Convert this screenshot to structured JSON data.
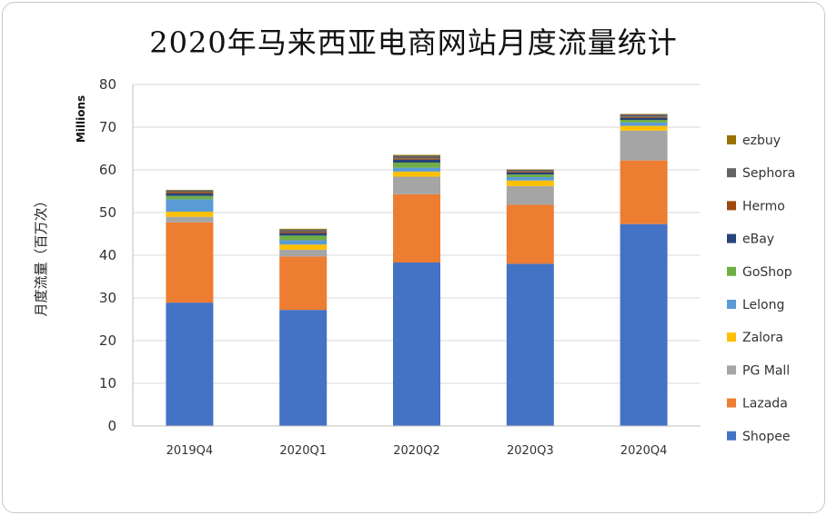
{
  "chart_data": {
    "type": "bar",
    "stacked": true,
    "title": "2020年马来西亚电商网站月度流量统计",
    "ylabel": "月度流量（百万次）",
    "yunit": "Millions",
    "ylim": [
      0,
      80
    ],
    "yticks": [
      0,
      10,
      20,
      30,
      40,
      50,
      60,
      70,
      80
    ],
    "grid": true,
    "legend_position": "right",
    "categories": [
      "2019Q4",
      "2020Q1",
      "2020Q2",
      "2020Q3",
      "2020Q4"
    ],
    "series": [
      {
        "name": "Shopee",
        "color": "#4472C4",
        "values": [
          28.9,
          27.2,
          38.3,
          38.0,
          47.3
        ]
      },
      {
        "name": "Lazada",
        "color": "#ED7D31",
        "values": [
          18.8,
          12.5,
          16.0,
          13.8,
          14.9
        ]
      },
      {
        "name": "PG Mall",
        "color": "#A5A5A5",
        "values": [
          1.3,
          1.6,
          4.1,
          4.4,
          7.0
        ]
      },
      {
        "name": "Zalora",
        "color": "#FFC000",
        "values": [
          1.2,
          1.2,
          1.2,
          1.3,
          1.1
        ]
      },
      {
        "name": "Lelong",
        "color": "#5B9BD5",
        "values": [
          2.9,
          1.0,
          0.9,
          0.8,
          0.8
        ]
      },
      {
        "name": "GoShop",
        "color": "#70AD47",
        "values": [
          0.8,
          1.1,
          1.2,
          0.6,
          0.6
        ]
      },
      {
        "name": "eBay",
        "color": "#264478",
        "values": [
          0.6,
          0.6,
          0.7,
          0.5,
          0.5
        ]
      },
      {
        "name": "Hermo",
        "color": "#9E480E",
        "values": [
          0.3,
          0.3,
          0.3,
          0.2,
          0.2
        ]
      },
      {
        "name": "Sephora",
        "color": "#636363",
        "values": [
          0.4,
          0.5,
          0.6,
          0.4,
          0.6
        ]
      },
      {
        "name": "ezbuy",
        "color": "#997300",
        "values": [
          0.1,
          0.2,
          0.2,
          0.1,
          0.1
        ]
      }
    ]
  }
}
